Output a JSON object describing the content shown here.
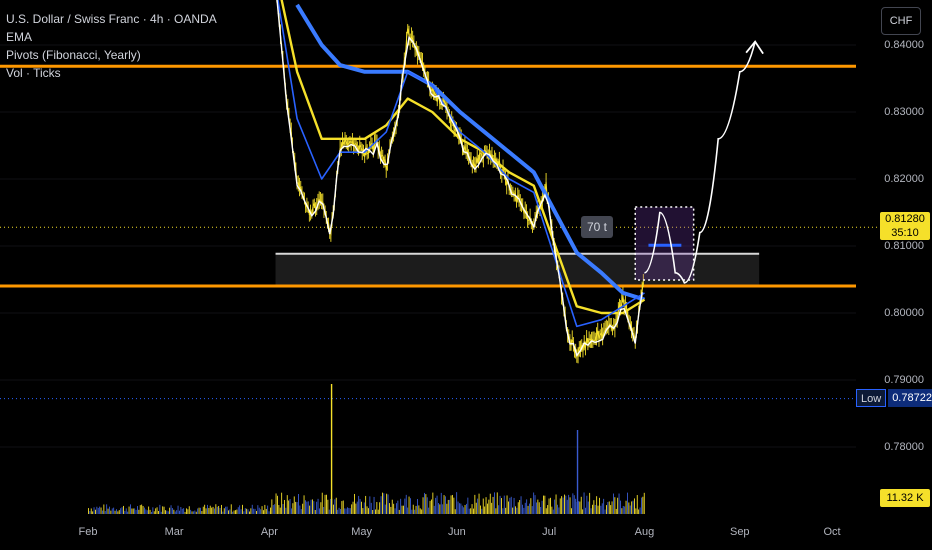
{
  "legend": {
    "symbol": "U.S. Dollar / Swiss Franc · 4h · OANDA",
    "ema": "EMA",
    "pivots": "Pivots (Fibonacci, Yearly)",
    "volume": "Vol · Ticks"
  },
  "currency_button": "CHF",
  "price_label": {
    "price": "0.81280",
    "countdown": "35:10"
  },
  "low_label": {
    "label": "Low",
    "value": "0.78722"
  },
  "volume_label": "11.32 K",
  "annotation": "70 t",
  "colors": {
    "background": "#000000",
    "price": "#f5e02a",
    "ema_fast": "#ffffff",
    "ema_mid": "#2962ff",
    "ema_yellow": "#f5e02a",
    "ema_slow": "#3a7bff",
    "pivot": "#ff9800",
    "zone": "#1c1c1c"
  },
  "chart_data": {
    "type": "line",
    "title": "U.S. Dollar / Swiss Franc · 4h · OANDA",
    "y_ticks": [
      "0.84000",
      "0.83000",
      "0.82000",
      "0.81000",
      "0.80000",
      "0.79000",
      "0.78000"
    ],
    "y_tick_values": [
      0.84,
      0.83,
      0.82,
      0.81,
      0.8,
      0.79,
      0.78
    ],
    "x_ticks": [
      "Feb",
      "Mar",
      "Apr",
      "May",
      "Jun",
      "Jul",
      "Aug",
      "Sep",
      "Oct"
    ],
    "ylim": [
      0.773,
      0.8485
    ],
    "pivot_levels": [
      0.83683,
      0.80403
    ],
    "support_zone": [
      0.80403,
      0.80885
    ],
    "current_price": 0.8128,
    "period_low": 0.78722,
    "series": [
      {
        "name": "Price",
        "x": [
          "Apr 3",
          "Apr 7",
          "Apr 10",
          "Apr 14",
          "Apr 18",
          "Apr 21",
          "Apr 24",
          "Apr 28",
          "May 2",
          "May 6",
          "May 9",
          "May 13",
          "May 16",
          "May 20",
          "May 24",
          "May 28",
          "Jun 2",
          "Jun 6",
          "Jun 10",
          "Jun 14",
          "Jun 18",
          "Jun 22",
          "Jun 26",
          "Jun 30",
          "Jul 3",
          "Jul 7",
          "Jul 10",
          "Jul 14",
          "Jul 18",
          "Jul 22",
          "Jul 25",
          "Jul 29",
          "Aug 1"
        ],
        "values": [
          0.85,
          0.83,
          0.82,
          0.815,
          0.817,
          0.812,
          0.825,
          0.826,
          0.824,
          0.825,
          0.822,
          0.83,
          0.842,
          0.838,
          0.833,
          0.831,
          0.826,
          0.822,
          0.824,
          0.823,
          0.819,
          0.816,
          0.813,
          0.819,
          0.809,
          0.797,
          0.794,
          0.796,
          0.797,
          0.798,
          0.802,
          0.796,
          0.806
        ]
      },
      {
        "name": "EMA",
        "x": [
          "Apr 3",
          "Apr 10",
          "Apr 18",
          "Apr 24",
          "May 2",
          "May 9",
          "May 16",
          "May 24",
          "Jun 2",
          "Jun 10",
          "Jun 18",
          "Jun 26",
          "Jul 3",
          "Jul 10",
          "Jul 18",
          "Jul 25",
          "Aug 1"
        ],
        "values": [
          0.849,
          0.829,
          0.82,
          0.824,
          0.824,
          0.827,
          0.836,
          0.834,
          0.827,
          0.824,
          0.82,
          0.818,
          0.808,
          0.798,
          0.799,
          0.801,
          0.803
        ]
      },
      {
        "name": "EMA",
        "x": [
          "Apr 3",
          "Apr 10",
          "Apr 18",
          "Apr 24",
          "May 2",
          "May 9",
          "May 16",
          "May 24",
          "Jun 2",
          "Jun 10",
          "Jun 18",
          "Jun 26",
          "Jul 3",
          "Jul 10",
          "Jul 18",
          "Jul 25",
          "Aug 1"
        ],
        "values": [
          0.851,
          0.836,
          0.826,
          0.826,
          0.826,
          0.828,
          0.832,
          0.83,
          0.826,
          0.824,
          0.821,
          0.819,
          0.81,
          0.801,
          0.8,
          0.8,
          0.802
        ]
      },
      {
        "name": "EMA",
        "x": [
          "Apr 10",
          "Apr 18",
          "Apr 24",
          "May 2",
          "May 9",
          "May 16",
          "May 24",
          "Jun 2",
          "Jun 10",
          "Jun 18",
          "Jun 26",
          "Jul 3",
          "Jul 10",
          "Jul 18",
          "Jul 25",
          "Aug 1"
        ],
        "values": [
          0.846,
          0.84,
          0.837,
          0.836,
          0.836,
          0.836,
          0.834,
          0.83,
          0.827,
          0.824,
          0.821,
          0.815,
          0.809,
          0.806,
          0.803,
          0.802
        ]
      }
    ],
    "projection": {
      "x": [
        "Aug 1",
        "Aug 6",
        "Aug 11",
        "Aug 14",
        "Aug 19",
        "Aug 25",
        "Sep 1",
        "Sep 6"
      ],
      "values": [
        0.806,
        0.815,
        0.806,
        0.8045,
        0.812,
        0.826,
        0.836,
        0.8405
      ]
    }
  },
  "volume_bars": {
    "x_start": "Feb",
    "spikes": [
      {
        "x": "Apr 21",
        "label": "vol_spike_apr"
      },
      {
        "x": "Jul 10",
        "label": "vol_spike_jul"
      }
    ]
  }
}
